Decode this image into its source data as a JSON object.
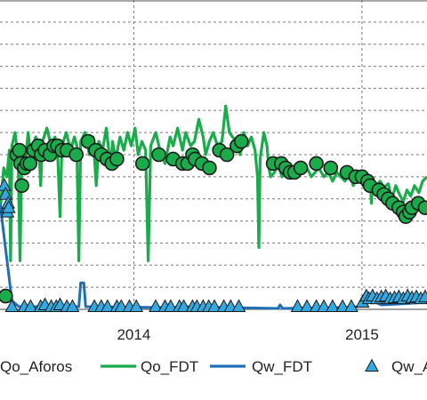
{
  "chart_data": {
    "type": "line",
    "title": "",
    "xlabel": "",
    "ylabel": "",
    "x_axis": {
      "type": "date",
      "range": [
        "2013-06-01",
        "2015-04-15"
      ],
      "tick_labels": [
        "2014",
        "2015"
      ],
      "gridlines": [
        "2014-01-01",
        "2015-01-01"
      ]
    },
    "y_axis": {
      "range": [
        0,
        350
      ],
      "grid": true,
      "tick_labels": []
    },
    "legend": {
      "placement": "bottom"
    },
    "colors": {
      "Qo_FDT": "#1aab4b",
      "Qw_FDT": "#1f6fb8",
      "Qo_Aforos": "#1aab4b",
      "Qw_Aforos": "#34a8e0"
    },
    "series": [
      {
        "name": "Qo_FDT",
        "style": "line",
        "points": [
          [
            "2013-06-01",
            110
          ],
          [
            "2013-06-07",
            160
          ],
          [
            "2013-06-12",
            150
          ],
          [
            "2013-06-16",
            180
          ],
          [
            "2013-06-18",
            55
          ],
          [
            "2013-06-20",
            185
          ],
          [
            "2013-06-25",
            200
          ],
          [
            "2013-06-30",
            170
          ],
          [
            "2013-07-03",
            55
          ],
          [
            "2013-07-06",
            185
          ],
          [
            "2013-07-12",
            170
          ],
          [
            "2013-07-16",
            200
          ],
          [
            "2013-07-20",
            175
          ],
          [
            "2013-07-28",
            195
          ],
          [
            "2013-08-02",
            185
          ],
          [
            "2013-08-05",
            140
          ],
          [
            "2013-08-08",
            190
          ],
          [
            "2013-08-15",
            205
          ],
          [
            "2013-08-22",
            185
          ],
          [
            "2013-08-28",
            195
          ],
          [
            "2013-09-01",
            180
          ],
          [
            "2013-09-05",
            105
          ],
          [
            "2013-09-08",
            185
          ],
          [
            "2013-09-15",
            200
          ],
          [
            "2013-09-22",
            180
          ],
          [
            "2013-09-28",
            195
          ],
          [
            "2013-10-02",
            185
          ],
          [
            "2013-10-05",
            55
          ],
          [
            "2013-10-08",
            190
          ],
          [
            "2013-10-15",
            200
          ],
          [
            "2013-10-22",
            175
          ],
          [
            "2013-10-28",
            195
          ],
          [
            "2013-11-02",
            140
          ],
          [
            "2013-11-06",
            190
          ],
          [
            "2013-11-12",
            180
          ],
          [
            "2013-11-18",
            205
          ],
          [
            "2013-11-25",
            160
          ],
          [
            "2013-11-28",
            190
          ],
          [
            "2013-12-03",
            170
          ],
          [
            "2013-12-10",
            195
          ],
          [
            "2013-12-16",
            180
          ],
          [
            "2013-12-22",
            200
          ],
          [
            "2013-12-28",
            185
          ],
          [
            "2014-01-03",
            205
          ],
          [
            "2014-01-08",
            175
          ],
          [
            "2014-01-14",
            190
          ],
          [
            "2014-01-20",
            180
          ],
          [
            "2014-01-24",
            55
          ],
          [
            "2014-01-28",
            185
          ],
          [
            "2014-02-05",
            200
          ],
          [
            "2014-02-12",
            180
          ],
          [
            "2014-02-20",
            165
          ],
          [
            "2014-02-28",
            195
          ],
          [
            "2014-03-05",
            185
          ],
          [
            "2014-03-12",
            205
          ],
          [
            "2014-03-20",
            180
          ],
          [
            "2014-03-25",
            200
          ],
          [
            "2014-04-02",
            185
          ],
          [
            "2014-04-08",
            190
          ],
          [
            "2014-04-15",
            215
          ],
          [
            "2014-04-22",
            195
          ],
          [
            "2014-04-26",
            175
          ],
          [
            "2014-05-02",
            190
          ],
          [
            "2014-05-08",
            200
          ],
          [
            "2014-05-15",
            185
          ],
          [
            "2014-05-22",
            190
          ],
          [
            "2014-05-28",
            230
          ],
          [
            "2014-06-03",
            200
          ],
          [
            "2014-06-08",
            195
          ],
          [
            "2014-06-15",
            190
          ],
          [
            "2014-06-20",
            175
          ],
          [
            "2014-06-26",
            200
          ],
          [
            "2014-07-02",
            185
          ],
          [
            "2014-07-08",
            195
          ],
          [
            "2014-07-14",
            180
          ],
          [
            "2014-07-18",
            150
          ],
          [
            "2014-07-20",
            70
          ],
          [
            "2014-07-22",
            170
          ],
          [
            "2014-07-28",
            200
          ],
          [
            "2014-08-02",
            185
          ],
          [
            "2014-08-05",
            160
          ],
          [
            "2014-08-08",
            150
          ],
          [
            "2014-08-14",
            155
          ],
          [
            "2014-08-20",
            165
          ],
          [
            "2014-08-26",
            150
          ],
          [
            "2014-09-01",
            160
          ],
          [
            "2014-09-08",
            155
          ],
          [
            "2014-09-15",
            150
          ],
          [
            "2014-09-22",
            165
          ],
          [
            "2014-09-28",
            155
          ],
          [
            "2014-10-05",
            160
          ],
          [
            "2014-10-12",
            150
          ],
          [
            "2014-10-18",
            155
          ],
          [
            "2014-10-24",
            160
          ],
          [
            "2014-11-01",
            150
          ],
          [
            "2014-11-08",
            155
          ],
          [
            "2014-11-15",
            145
          ],
          [
            "2014-11-22",
            155
          ],
          [
            "2014-11-28",
            150
          ],
          [
            "2014-12-05",
            145
          ],
          [
            "2014-12-12",
            155
          ],
          [
            "2014-12-18",
            140
          ],
          [
            "2014-12-24",
            150
          ],
          [
            "2015-01-01",
            145
          ],
          [
            "2015-01-06",
            150
          ],
          [
            "2015-01-10",
            140
          ],
          [
            "2015-01-14",
            150
          ],
          [
            "2015-01-16",
            120
          ],
          [
            "2015-01-18",
            145
          ],
          [
            "2015-01-24",
            140
          ],
          [
            "2015-01-30",
            145
          ],
          [
            "2015-02-05",
            138
          ],
          [
            "2015-02-12",
            142
          ],
          [
            "2015-02-18",
            125
          ],
          [
            "2015-02-24",
            140
          ],
          [
            "2015-03-02",
            130
          ],
          [
            "2015-03-08",
            122
          ],
          [
            "2015-03-14",
            135
          ],
          [
            "2015-03-20",
            128
          ],
          [
            "2015-03-26",
            140
          ],
          [
            "2015-04-02",
            132
          ],
          [
            "2015-04-08",
            145
          ],
          [
            "2015-04-15",
            150
          ]
        ]
      },
      {
        "name": "Qw_FDT",
        "style": "line",
        "points": [
          [
            "2013-06-01",
            120
          ],
          [
            "2013-06-20",
            10
          ],
          [
            "2013-07-01",
            3
          ],
          [
            "2013-09-25",
            3
          ],
          [
            "2013-10-05",
            3
          ],
          [
            "2013-10-08",
            30
          ],
          [
            "2013-10-13",
            30
          ],
          [
            "2013-10-16",
            3
          ],
          [
            "2014-03-01",
            2
          ],
          [
            "2014-04-01",
            3
          ],
          [
            "2014-06-01",
            2
          ],
          [
            "2014-08-20",
            1
          ],
          [
            "2014-08-23",
            5
          ],
          [
            "2014-08-27",
            1
          ],
          [
            "2014-12-01",
            2
          ],
          [
            "2014-12-25",
            3
          ],
          [
            "2015-01-05",
            8
          ],
          [
            "2015-01-10",
            12
          ],
          [
            "2015-02-01",
            5
          ],
          [
            "2015-03-01",
            6
          ],
          [
            "2015-04-15",
            8
          ]
        ]
      },
      {
        "name": "Qo_Aforos",
        "style": "markers",
        "marker": "circle",
        "points": [
          [
            "2013-06-10",
            15
          ],
          [
            "2013-06-28",
            175
          ],
          [
            "2013-07-02",
            180
          ],
          [
            "2013-07-04",
            165
          ],
          [
            "2013-07-06",
            140
          ],
          [
            "2013-07-10",
            160
          ],
          [
            "2013-07-14",
            165
          ],
          [
            "2013-07-19",
            165
          ],
          [
            "2013-07-25",
            180
          ],
          [
            "2013-08-01",
            185
          ],
          [
            "2013-08-06",
            175
          ],
          [
            "2013-08-12",
            180
          ],
          [
            "2013-08-20",
            175
          ],
          [
            "2013-08-26",
            185
          ],
          [
            "2013-09-01",
            185
          ],
          [
            "2013-09-08",
            180
          ],
          [
            "2013-09-16",
            180
          ],
          [
            "2013-10-01",
            175
          ],
          [
            "2013-10-20",
            190
          ],
          [
            "2013-11-01",
            180
          ],
          [
            "2013-11-10",
            175
          ],
          [
            "2013-11-19",
            170
          ],
          [
            "2013-11-27",
            165
          ],
          [
            "2013-12-05",
            170
          ],
          [
            "2014-01-15",
            165
          ],
          [
            "2014-02-10",
            175
          ],
          [
            "2014-03-05",
            170
          ],
          [
            "2014-03-20",
            165
          ],
          [
            "2014-03-28",
            165
          ],
          [
            "2014-04-05",
            175
          ],
          [
            "2014-04-09",
            170
          ],
          [
            "2014-04-20",
            165
          ],
          [
            "2014-05-02",
            160
          ],
          [
            "2014-05-18",
            180
          ],
          [
            "2014-05-30",
            175
          ],
          [
            "2014-06-15",
            185
          ],
          [
            "2014-06-22",
            190
          ],
          [
            "2014-08-12",
            165
          ],
          [
            "2014-08-25",
            165
          ],
          [
            "2014-09-01",
            160
          ],
          [
            "2014-09-08",
            155
          ],
          [
            "2014-09-15",
            155
          ],
          [
            "2014-09-25",
            160
          ],
          [
            "2014-10-20",
            165
          ],
          [
            "2014-11-12",
            160
          ],
          [
            "2014-12-08",
            155
          ],
          [
            "2014-12-22",
            150
          ],
          [
            "2015-01-01",
            150
          ],
          [
            "2015-01-10",
            145
          ],
          [
            "2015-01-14",
            140
          ],
          [
            "2015-01-28",
            135
          ],
          [
            "2015-02-05",
            130
          ],
          [
            "2015-02-12",
            125
          ],
          [
            "2015-02-19",
            120
          ],
          [
            "2015-03-01",
            115
          ],
          [
            "2015-03-08",
            110
          ],
          [
            "2015-03-12",
            105
          ],
          [
            "2015-03-18",
            110
          ],
          [
            "2015-03-22",
            115
          ],
          [
            "2015-04-01",
            120
          ],
          [
            "2015-04-12",
            115
          ]
        ]
      },
      {
        "name": "Qw_Aforos",
        "style": "markers",
        "marker": "triangle",
        "points": [
          [
            "2013-06-08",
            140
          ],
          [
            "2013-06-10",
            130
          ],
          [
            "2013-06-12",
            115
          ],
          [
            "2013-06-13",
            110
          ],
          [
            "2013-06-14",
            120
          ],
          [
            "2013-06-15",
            115
          ],
          [
            "2013-06-20",
            3
          ],
          [
            "2013-07-10",
            3
          ],
          [
            "2013-07-20",
            3
          ],
          [
            "2013-08-05",
            3
          ],
          [
            "2013-08-12",
            5
          ],
          [
            "2013-08-22",
            3
          ],
          [
            "2013-08-30",
            3
          ],
          [
            "2013-09-05",
            5
          ],
          [
            "2013-09-16",
            3
          ],
          [
            "2013-09-25",
            3
          ],
          [
            "2013-10-30",
            3
          ],
          [
            "2013-11-10",
            3
          ],
          [
            "2013-11-20",
            3
          ],
          [
            "2013-12-05",
            3
          ],
          [
            "2013-12-12",
            3
          ],
          [
            "2013-12-25",
            3
          ],
          [
            "2014-01-05",
            3
          ],
          [
            "2014-02-05",
            3
          ],
          [
            "2014-02-20",
            3
          ],
          [
            "2014-03-01",
            3
          ],
          [
            "2014-03-15",
            3
          ],
          [
            "2014-03-22",
            3
          ],
          [
            "2014-04-05",
            3
          ],
          [
            "2014-04-12",
            3
          ],
          [
            "2014-04-22",
            3
          ],
          [
            "2014-05-01",
            3
          ],
          [
            "2014-05-10",
            3
          ],
          [
            "2014-05-25",
            3
          ],
          [
            "2014-06-05",
            3
          ],
          [
            "2014-06-18",
            3
          ],
          [
            "2014-09-20",
            3
          ],
          [
            "2014-10-05",
            3
          ],
          [
            "2014-10-20",
            3
          ],
          [
            "2014-11-01",
            3
          ],
          [
            "2014-11-15",
            3
          ],
          [
            "2014-12-01",
            3
          ],
          [
            "2014-12-15",
            3
          ],
          [
            "2015-01-02",
            8
          ],
          [
            "2015-01-08",
            15
          ],
          [
            "2015-01-12",
            12
          ],
          [
            "2015-01-18",
            15
          ],
          [
            "2015-01-25",
            12
          ],
          [
            "2015-02-01",
            14
          ],
          [
            "2015-02-08",
            15
          ],
          [
            "2015-02-15",
            12
          ],
          [
            "2015-02-22",
            13
          ],
          [
            "2015-03-01",
            14
          ],
          [
            "2015-03-08",
            12
          ],
          [
            "2015-03-15",
            15
          ],
          [
            "2015-03-22",
            13
          ],
          [
            "2015-03-29",
            14
          ],
          [
            "2015-04-05",
            12
          ],
          [
            "2015-04-12",
            14
          ]
        ]
      }
    ]
  }
}
